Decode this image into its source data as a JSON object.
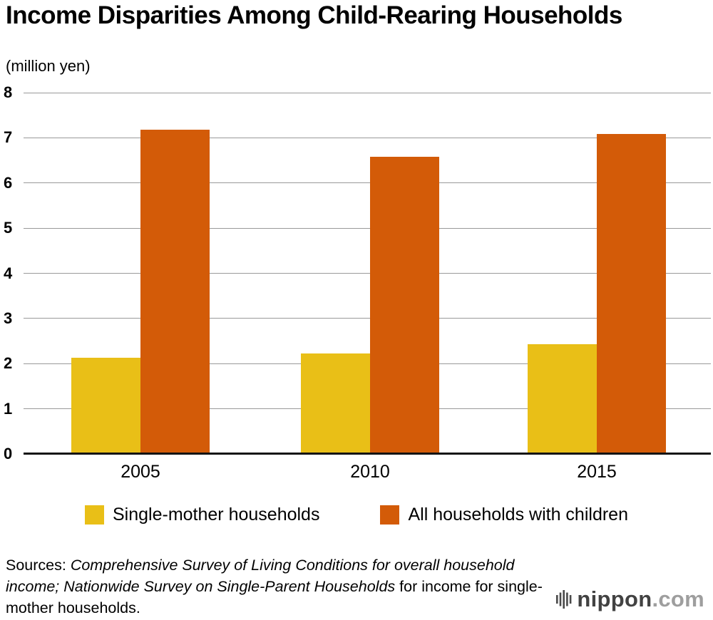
{
  "page": {
    "title": "Income Disparities Among Child-Rearing Households",
    "unit_label": "(million yen)"
  },
  "chart_data": {
    "type": "bar",
    "title": "Income Disparities Among Child-Rearing Households",
    "unit": "million yen",
    "categories": [
      "2005",
      "2010",
      "2015"
    ],
    "series": [
      {
        "name": "Single-mother households",
        "color": "#e9bf17",
        "values": [
          2.13,
          2.23,
          2.43
        ]
      },
      {
        "name": "All households with children",
        "color": "#d35b08",
        "values": [
          7.18,
          6.58,
          7.08
        ]
      }
    ],
    "ylim": [
      0,
      8
    ],
    "yticks": [
      0,
      1,
      2,
      3,
      4,
      5,
      6,
      7,
      8
    ],
    "grid": true,
    "legend_position": "bottom"
  },
  "sources": {
    "segments": [
      {
        "text": "Sources: ",
        "style": "normal"
      },
      {
        "text": "Comprehensive Survey of Living Conditions for overall household income; Nationwide Survey on Single-Parent Households",
        "style": "italic"
      },
      {
        "text": " for income for single-mother households.",
        "style": "normal"
      }
    ]
  },
  "logo": {
    "brand": "nippon",
    "tld": ".com"
  }
}
